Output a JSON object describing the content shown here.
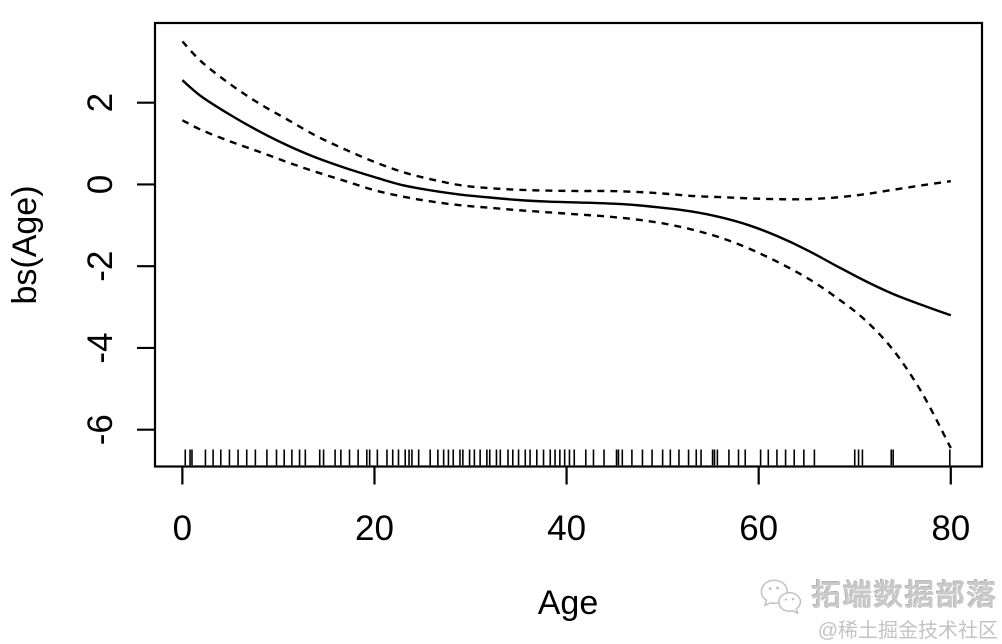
{
  "figure": {
    "background": "#ffffff",
    "ink_color": "#000000"
  },
  "chart_data": {
    "type": "line",
    "title": "",
    "xlabel": "Age",
    "ylabel": "bs(Age)",
    "grid": false,
    "legend": "none",
    "xlim": [
      -2.85,
      83.25
    ],
    "ylim": [
      -6.9,
      3.95
    ],
    "x_ticks": [
      0,
      20,
      40,
      60,
      80
    ],
    "y_ticks": [
      2,
      0,
      -2,
      -4,
      -6
    ],
    "x": [
      0,
      2,
      5,
      8,
      11,
      14,
      17,
      20,
      23,
      26,
      29,
      32,
      35,
      38,
      41,
      44,
      47,
      50,
      53,
      56,
      59,
      62,
      65,
      68,
      71,
      74,
      77,
      80
    ],
    "series": [
      {
        "name": "spline-fit",
        "style": "solid",
        "values": [
          2.55,
          2.15,
          1.7,
          1.3,
          0.95,
          0.65,
          0.4,
          0.18,
          -0.02,
          -0.15,
          -0.25,
          -0.32,
          -0.38,
          -0.42,
          -0.44,
          -0.46,
          -0.5,
          -0.57,
          -0.66,
          -0.8,
          -1.0,
          -1.27,
          -1.6,
          -1.98,
          -2.35,
          -2.68,
          -2.95,
          -3.2
        ]
      },
      {
        "name": "upper-confidence-band",
        "style": "dashed",
        "values": [
          3.5,
          3.0,
          2.45,
          1.98,
          1.58,
          1.18,
          0.85,
          0.55,
          0.3,
          0.12,
          -0.02,
          -0.09,
          -0.13,
          -0.15,
          -0.16,
          -0.16,
          -0.18,
          -0.22,
          -0.28,
          -0.31,
          -0.34,
          -0.36,
          -0.36,
          -0.32,
          -0.24,
          -0.13,
          -0.02,
          0.08
        ]
      },
      {
        "name": "lower-confidence-band",
        "style": "dashed",
        "values": [
          1.57,
          1.33,
          1.05,
          0.8,
          0.54,
          0.3,
          0.08,
          -0.14,
          -0.3,
          -0.42,
          -0.51,
          -0.57,
          -0.63,
          -0.68,
          -0.73,
          -0.78,
          -0.85,
          -0.95,
          -1.1,
          -1.3,
          -1.57,
          -1.9,
          -2.28,
          -2.75,
          -3.3,
          -4.05,
          -5.1,
          -6.45
        ]
      }
    ],
    "rug_ages": [
      0.3,
      0.8,
      1.0,
      2.4,
      3.2,
      4.0,
      4.9,
      5.8,
      6.7,
      7.6,
      8.8,
      9.8,
      10.6,
      11.4,
      12.2,
      12.8,
      14.3,
      14.7,
      15.9,
      16.5,
      17.4,
      18.3,
      19.2,
      19.5,
      20.3,
      21.3,
      21.9,
      22.5,
      23.2,
      23.6,
      23.9,
      24.6,
      25.8,
      26.6,
      27.2,
      27.7,
      28.2,
      28.9,
      29.2,
      29.9,
      30.4,
      31.0,
      31.7,
      32.0,
      32.7,
      33.1,
      33.9,
      34.4,
      35.0,
      35.7,
      36.2,
      36.9,
      37.6,
      38.3,
      38.8,
      39.3,
      39.8,
      40.3,
      40.8,
      42.0,
      42.8,
      43.9,
      45.2,
      45.4,
      45.8,
      46.8,
      47.9,
      48.9,
      50.0,
      50.8,
      51.7,
      52.7,
      53.5,
      54.0,
      55.2,
      55.4,
      55.7,
      56.9,
      57.9,
      58.6,
      60.2,
      61.0,
      61.9,
      62.8,
      63.7,
      64.7,
      65.8,
      70.0,
      70.4,
      70.8,
      73.8,
      74.0,
      79.9
    ]
  },
  "watermark": {
    "icon": "wechat-chat-bubbles-icon",
    "brand": "拓端数据部落",
    "community": "@稀土掘金技术社区",
    "brand_color": "#c9c9c9",
    "community_color": "#c3c3c3"
  }
}
